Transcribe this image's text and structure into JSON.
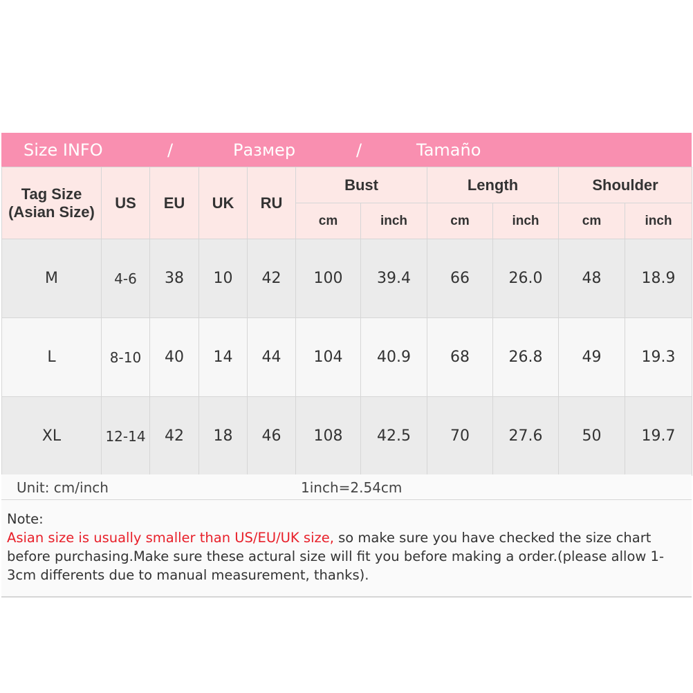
{
  "banner": {
    "part1": "Size INFO",
    "sep1": "/",
    "part2": "Размер",
    "sep2": "/",
    "part3": "Tamaño",
    "color": "#f98fb0"
  },
  "header": {
    "tag_line1": "Tag Size",
    "tag_line2": "(Asian Size)",
    "us": "US",
    "eu": "EU",
    "uk": "UK",
    "ru": "RU",
    "bust": "Bust",
    "length": "Length",
    "shoulder": "Shoulder",
    "cm": "cm",
    "inch": "inch"
  },
  "rows": [
    [
      "M",
      "4-6",
      "38",
      "10",
      "42",
      "100",
      "39.4",
      "66",
      "26.0",
      "48",
      "18.9"
    ],
    [
      "L",
      "8-10",
      "40",
      "14",
      "44",
      "104",
      "40.9",
      "68",
      "26.8",
      "49",
      "19.3"
    ],
    [
      "XL",
      "12-14",
      "42",
      "18",
      "46",
      "108",
      "42.5",
      "70",
      "27.6",
      "50",
      "19.7"
    ]
  ],
  "unit": {
    "label": "Unit: cm/inch",
    "conversion": "1inch=2.54cm"
  },
  "note": {
    "title": "Note:",
    "warning": "Asian size is usually smaller than US/EU/UK size,",
    "text": " so make sure you have checked the size chart before purchasing.Make sure these actural size will fit you before making a order.(please allow 1-3cm differents due to manual measurement, thanks)."
  }
}
